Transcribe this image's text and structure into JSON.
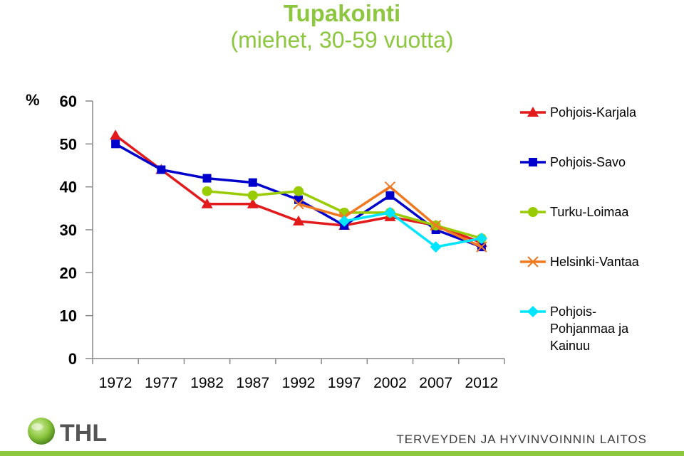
{
  "title": "Tupakointi",
  "subtitle": "(miehet, 30-59 vuotta)",
  "footer": {
    "logo_text": "THL",
    "organization": "TERVEYDEN JA HYVINVOINNIN LAITOS",
    "brand_color": "#8dc63f"
  },
  "chart_data": {
    "type": "line",
    "title": "Tupakointi",
    "subtitle": "(miehet, 30-59 vuotta)",
    "ylabel": "%",
    "xlabel": "",
    "ylim": [
      0,
      60
    ],
    "yticks": [
      0,
      10,
      20,
      30,
      40,
      50,
      60
    ],
    "categories": [
      "1972",
      "1977",
      "1982",
      "1987",
      "1992",
      "1997",
      "2002",
      "2007",
      "2012"
    ],
    "grid": false,
    "legend_position": "right",
    "series": [
      {
        "name": "Pohjois-Karjala",
        "color": "#e31a1c",
        "marker": "triangle",
        "values": [
          52,
          44,
          36,
          36,
          32,
          31,
          33,
          31,
          27
        ]
      },
      {
        "name": "Pohjois-Savo",
        "color": "#0000cc",
        "marker": "square",
        "values": [
          50,
          44,
          42,
          41,
          37,
          31,
          38,
          30,
          26
        ]
      },
      {
        "name": "Turku-Loimaa",
        "color": "#99cc00",
        "marker": "circle",
        "values": [
          null,
          null,
          39,
          38,
          39,
          34,
          34,
          31,
          28
        ]
      },
      {
        "name": "Helsinki-Vantaa",
        "color": "#f07820",
        "marker": "x",
        "values": [
          null,
          null,
          null,
          null,
          36,
          33,
          40,
          31,
          26
        ]
      },
      {
        "name": "Pohjois-Pohjanmaa ja Kainuu",
        "legend_lines": [
          "Pohjois-",
          "Pohjanmaa ja",
          "Kainuu"
        ],
        "color": "#00e5ff",
        "marker": "diamond",
        "values": [
          null,
          null,
          null,
          null,
          null,
          32,
          34,
          26,
          28
        ]
      }
    ]
  }
}
